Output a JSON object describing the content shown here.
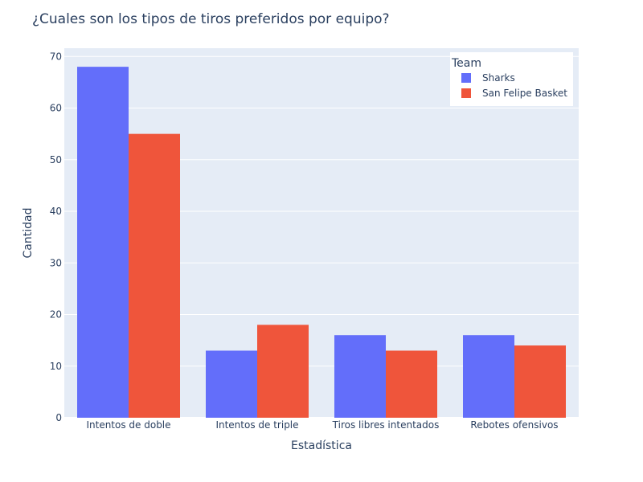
{
  "chart_data": {
    "type": "bar",
    "title": "¿Cuales son los tipos de tiros preferidos por equipo?",
    "xlabel": "Estadística",
    "ylabel": "Cantidad",
    "categories": [
      "Intentos de doble",
      "Intentos de triple",
      "Tiros libres intentados",
      "Rebotes ofensivos"
    ],
    "series": [
      {
        "name": "Sharks",
        "values": [
          68,
          13,
          16,
          16
        ],
        "color": "#636efa"
      },
      {
        "name": "San Felipe Basket",
        "values": [
          55,
          18,
          13,
          14
        ],
        "color": "#ef553b"
      }
    ],
    "ylim": [
      0,
      71.6
    ],
    "yticks": [
      0,
      10,
      20,
      30,
      40,
      50,
      60,
      70
    ],
    "grid": true,
    "legend": {
      "title": "Team",
      "position": "top-right"
    },
    "colors": {
      "plot_background": "#e5ecf6",
      "grid": "#ffffff",
      "text": "#2a3f5f"
    }
  }
}
